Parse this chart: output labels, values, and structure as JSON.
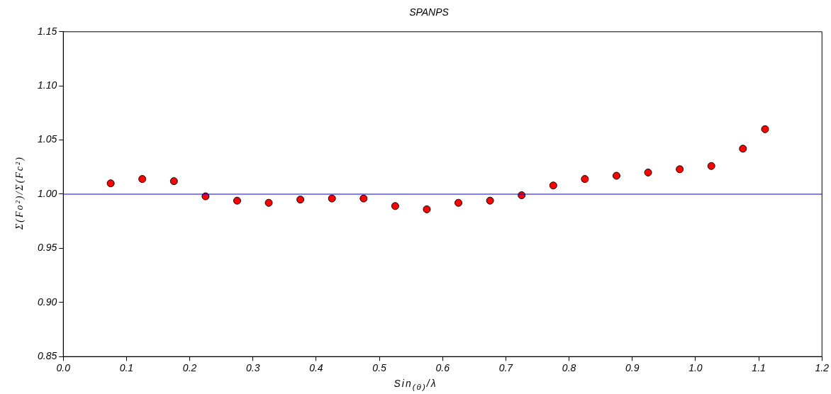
{
  "chart_data": {
    "type": "scatter",
    "title": "SPANPS",
    "xlabel": "Sin$_{(θ)}$/λ",
    "ylabel": "Σ(Fo²)/Σ(Fc²)",
    "x": [
      0.075,
      0.125,
      0.175,
      0.225,
      0.275,
      0.325,
      0.375,
      0.425,
      0.475,
      0.525,
      0.575,
      0.625,
      0.675,
      0.725,
      0.775,
      0.825,
      0.875,
      0.925,
      0.975,
      1.025,
      1.075,
      1.11
    ],
    "series": [
      {
        "color": "#ff0000",
        "values": [
          1.01,
          1.014,
          1.012,
          0.998,
          0.994,
          0.992,
          0.995,
          0.996,
          0.996,
          0.989,
          0.986,
          0.992,
          0.994,
          0.999,
          1.008,
          1.014,
          1.017,
          1.02,
          1.023,
          1.026,
          1.042,
          1.06
        ]
      }
    ],
    "xlim": [
      0,
      1.2
    ],
    "xticks": [
      {
        "value": 0,
        "label": "0.0"
      },
      0.1,
      0.2,
      0.3,
      0.4,
      0.5,
      0.6,
      0.7,
      0.8,
      0.9,
      {
        "value": 1,
        "label": "1.0"
      },
      1.1,
      1.2
    ],
    "ylim": [
      0.85,
      1.15
    ],
    "yticks": [
      0.85,
      {
        "value": 0.9,
        "label": "0.90"
      },
      0.95,
      {
        "value": 1,
        "label": "1.00"
      },
      1.05,
      {
        "value": 1.1,
        "label": "1.10"
      },
      1.15
    ],
    "ref_lines": [
      {
        "axis": "y",
        "value": 1,
        "color": "#0000ff"
      }
    ],
    "grid": false,
    "legend": false,
    "marker": "circle"
  }
}
